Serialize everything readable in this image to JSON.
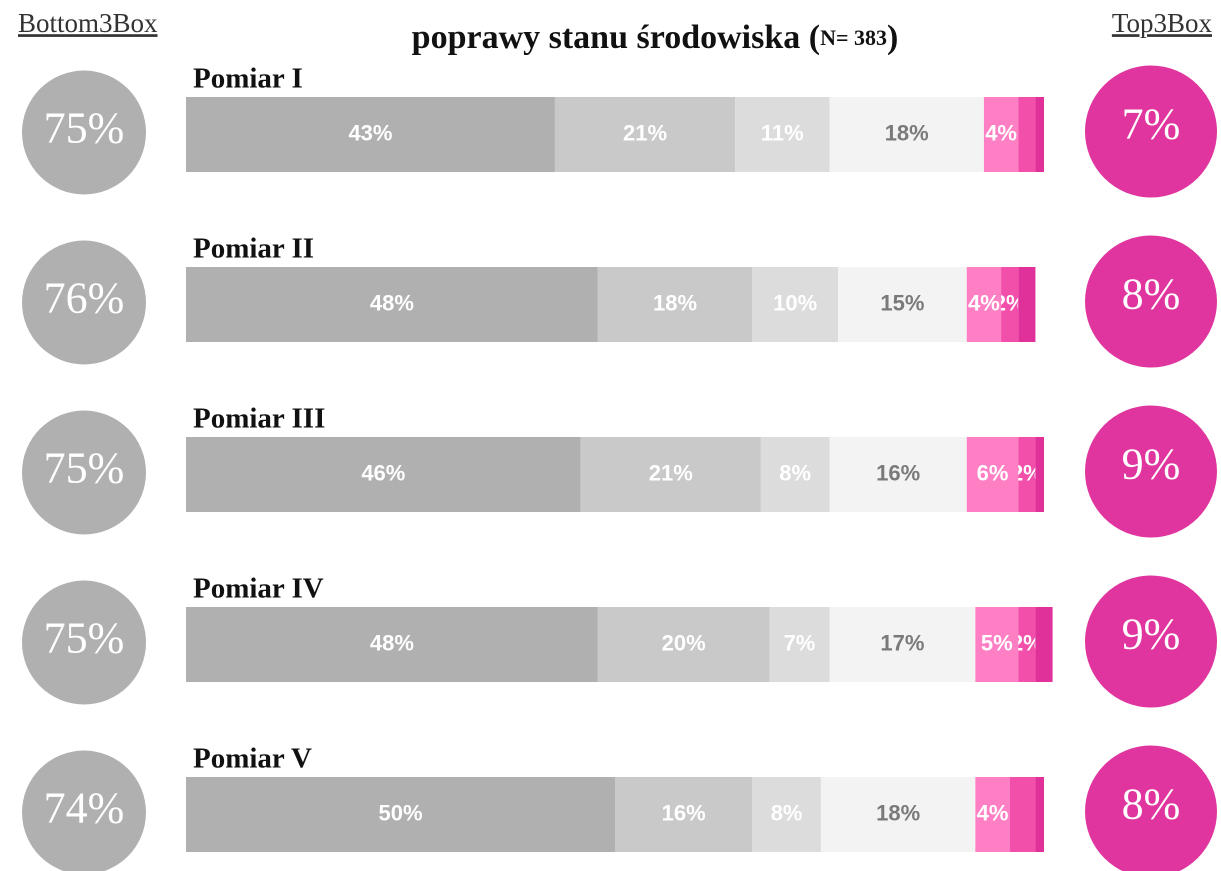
{
  "chart_data": {
    "type": "stacked-barh",
    "title": [
      "poprawy stanu środowiska (",
      "N= 383",
      ")"
    ],
    "left_header": "Bottom3Box",
    "right_header": "Top3Box",
    "categories": [
      "Pomiar I",
      "Pomiar II",
      "Pomiar III",
      "Pomiar IV",
      "Pomiar V"
    ],
    "xlim": [
      0,
      100
    ],
    "series": [
      {
        "color": "#b0b0b0",
        "text_color": "#ffffff",
        "values": [
          43,
          48,
          46,
          48,
          50
        ],
        "value_labels": [
          "43%",
          "48%",
          "46%",
          "48%",
          "50%"
        ]
      },
      {
        "color": "#c9c9c9",
        "text_color": "#ffffff",
        "values": [
          21,
          18,
          21,
          20,
          16
        ],
        "value_labels": [
          "21%",
          "18%",
          "21%",
          "20%",
          "16%"
        ]
      },
      {
        "color": "#dcdcdc",
        "text_color": "#ffffff",
        "values": [
          11,
          10,
          8,
          7,
          8
        ],
        "value_labels": [
          "11%",
          "10%",
          "8%",
          "7%",
          "8%"
        ]
      },
      {
        "color": "#f3f3f3",
        "text_color": "#7a7a7a",
        "values": [
          18,
          15,
          16,
          17,
          18
        ],
        "value_labels": [
          "18%",
          "15%",
          "16%",
          "17%",
          "18%"
        ]
      },
      {
        "color": "#ff7fc4",
        "text_color": "#ffffff",
        "values": [
          4,
          4,
          6,
          5,
          4
        ],
        "value_labels": [
          "4%",
          "4%",
          "6%",
          "5%",
          "4%"
        ]
      },
      {
        "color": "#f24fab",
        "text_color": "#ffffff",
        "values": [
          2,
          2,
          2,
          2,
          3
        ],
        "value_labels": [
          null,
          "2%",
          "2%",
          "2%",
          null
        ]
      },
      {
        "color": "#e0309a",
        "text_color": "#ffffff",
        "values": [
          1,
          2,
          1,
          2,
          1
        ],
        "value_labels": [
          null,
          null,
          null,
          null,
          null
        ]
      }
    ],
    "bottom3": {
      "color": "#b0b0b0",
      "values": [
        75,
        76,
        75,
        75,
        74
      ],
      "value_labels": [
        "75%",
        "76%",
        "75%",
        "75%",
        "74%"
      ]
    },
    "top3": {
      "color": "#e0359e",
      "values": [
        7,
        8,
        9,
        9,
        8
      ],
      "value_labels": [
        "7%",
        "8%",
        "9%",
        "9%",
        "8%"
      ]
    }
  }
}
